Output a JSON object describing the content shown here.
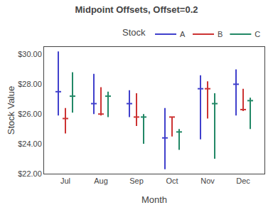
{
  "chart_data": {
    "type": "hilo",
    "title": "Midpoint Offsets, Offset=0.2",
    "xlabel": "Month",
    "ylabel": "Stock Value",
    "categories": [
      "Jul",
      "Aug",
      "Sep",
      "Oct",
      "Nov",
      "Dec"
    ],
    "series": [
      {
        "name": "A",
        "color": "#4040cc",
        "high": [
          30.2,
          28.7,
          27.6,
          26.4,
          28.6,
          29.0
        ],
        "mid": [
          27.5,
          26.7,
          26.7,
          24.4,
          27.7,
          28.0
        ],
        "low": [
          25.9,
          26.0,
          25.8,
          22.3,
          24.3,
          25.9
        ]
      },
      {
        "name": "B",
        "color": "#cc3333",
        "high": [
          26.4,
          27.8,
          27.4,
          25.8,
          28.2,
          27.7
        ],
        "mid": [
          25.7,
          26.0,
          25.8,
          25.8,
          27.7,
          26.3
        ],
        "low": [
          24.7,
          25.9,
          25.2,
          24.5,
          25.7,
          26.2
        ]
      },
      {
        "name": "C",
        "color": "#228866",
        "high": [
          28.8,
          27.5,
          26.0,
          25.0,
          27.4,
          27.1
        ],
        "mid": [
          27.2,
          27.2,
          25.8,
          24.8,
          26.7,
          26.9
        ],
        "low": [
          26.1,
          25.8,
          24.0,
          23.6,
          23.0,
          25.0
        ]
      }
    ],
    "ylim": [
      22.0,
      30.5
    ],
    "yticks": [
      {
        "value": 22.0,
        "label": "$22.00"
      },
      {
        "value": 24.0,
        "label": "$24.00"
      },
      {
        "value": 26.0,
        "label": "$26.00"
      },
      {
        "value": 28.0,
        "label": "$28.00"
      },
      {
        "value": 30.0,
        "label": "$30.00"
      }
    ],
    "legend": "upper right",
    "legend_title": "Stock",
    "grid": false
  }
}
